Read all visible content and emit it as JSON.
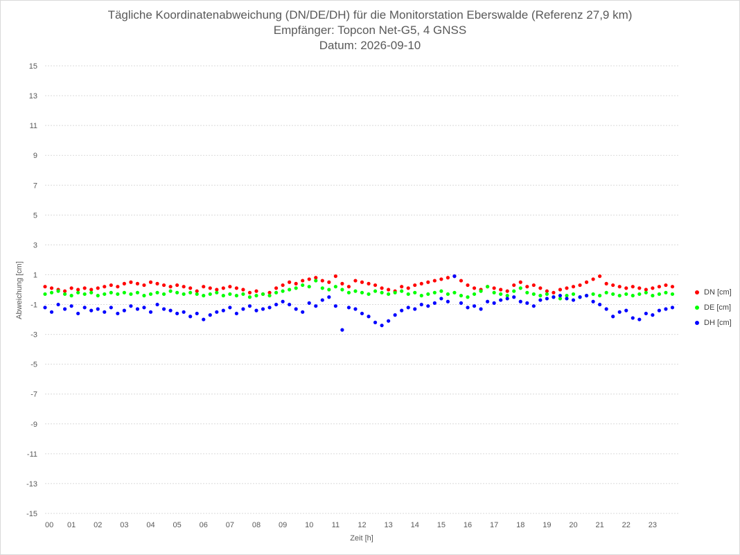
{
  "chart_data": {
    "type": "scatter",
    "title": "Tägliche Koordinatenabweichung (DN/DE/DH) für die Monitorstation Eberswalde (Referenz 27,9 km)",
    "subtitle": "Empfänger: Topcon Net-G5, 4 GNSS",
    "date_line": "Datum: 2026-09-10",
    "xlabel": "Zeit [h]",
    "ylabel": "Abweichung [cm]",
    "xlim": [
      0,
      24
    ],
    "ylim": [
      -15,
      15
    ],
    "y_ticks": [
      15,
      13,
      11,
      9,
      7,
      5,
      3,
      1,
      -1,
      -3,
      -5,
      -7,
      -9,
      -11,
      -13,
      -15
    ],
    "x_ticks": [
      "00",
      "01",
      "02",
      "03",
      "04",
      "05",
      "06",
      "07",
      "08",
      "09",
      "10",
      "11",
      "12",
      "13",
      "14",
      "15",
      "16",
      "17",
      "18",
      "19",
      "20",
      "21",
      "22",
      "23"
    ],
    "grid": "horizontal dashed",
    "legend_position": "right",
    "series": [
      {
        "name": "DN [cm]",
        "color": "#ff0000",
        "x": [
          0.0,
          0.25,
          0.5,
          0.75,
          1.0,
          1.25,
          1.5,
          1.75,
          2.0,
          2.25,
          2.5,
          2.75,
          3.0,
          3.25,
          3.5,
          3.75,
          4.0,
          4.25,
          4.5,
          4.75,
          5.0,
          5.25,
          5.5,
          5.75,
          6.0,
          6.25,
          6.5,
          6.75,
          7.0,
          7.25,
          7.5,
          7.75,
          8.0,
          8.25,
          8.5,
          8.75,
          9.0,
          9.25,
          9.5,
          9.75,
          10.0,
          10.25,
          10.5,
          10.75,
          11.0,
          11.25,
          11.5,
          11.75,
          12.0,
          12.25,
          12.5,
          12.75,
          13.0,
          13.25,
          13.5,
          13.75,
          14.0,
          14.25,
          14.5,
          14.75,
          15.0,
          15.25,
          15.5,
          15.75,
          16.0,
          16.25,
          16.5,
          16.75,
          17.0,
          17.25,
          17.5,
          17.75,
          18.0,
          18.25,
          18.5,
          18.75,
          19.0,
          19.25,
          19.5,
          19.75,
          20.0,
          20.25,
          20.5,
          20.75,
          21.0,
          21.25,
          21.5,
          21.75,
          22.0,
          22.25,
          22.5,
          22.75,
          23.0,
          23.25,
          23.5,
          23.75
        ],
        "y": [
          0.2,
          0.1,
          0.0,
          -0.1,
          0.1,
          0.0,
          0.1,
          0.0,
          0.1,
          0.2,
          0.3,
          0.2,
          0.4,
          0.5,
          0.4,
          0.3,
          0.5,
          0.4,
          0.3,
          0.2,
          0.3,
          0.2,
          0.1,
          -0.1,
          0.2,
          0.1,
          0.0,
          0.1,
          0.2,
          0.1,
          0.0,
          -0.2,
          -0.1,
          -0.3,
          -0.2,
          0.1,
          0.3,
          0.5,
          0.4,
          0.6,
          0.7,
          0.8,
          0.6,
          0.5,
          0.9,
          0.4,
          0.2,
          0.6,
          0.5,
          0.4,
          0.3,
          0.1,
          0.0,
          -0.1,
          0.2,
          0.1,
          0.3,
          0.4,
          0.5,
          0.6,
          0.7,
          0.8,
          0.9,
          0.6,
          0.3,
          0.1,
          0.0,
          0.2,
          0.1,
          0.0,
          -0.1,
          0.3,
          0.5,
          0.2,
          0.3,
          0.1,
          -0.1,
          -0.2,
          0.0,
          0.1,
          0.2,
          0.3,
          0.5,
          0.7,
          0.9,
          0.4,
          0.3,
          0.2,
          0.1,
          0.2,
          0.1,
          0.0,
          0.1,
          0.2,
          0.3,
          0.2
        ]
      },
      {
        "name": "DE [cm]",
        "color": "#00ff00",
        "x": [
          0.0,
          0.25,
          0.5,
          0.75,
          1.0,
          1.25,
          1.5,
          1.75,
          2.0,
          2.25,
          2.5,
          2.75,
          3.0,
          3.25,
          3.5,
          3.75,
          4.0,
          4.25,
          4.5,
          4.75,
          5.0,
          5.25,
          5.5,
          5.75,
          6.0,
          6.25,
          6.5,
          6.75,
          7.0,
          7.25,
          7.5,
          7.75,
          8.0,
          8.25,
          8.5,
          8.75,
          9.0,
          9.25,
          9.5,
          9.75,
          10.0,
          10.25,
          10.5,
          10.75,
          11.0,
          11.25,
          11.5,
          11.75,
          12.0,
          12.25,
          12.5,
          12.75,
          13.0,
          13.25,
          13.5,
          13.75,
          14.0,
          14.25,
          14.5,
          14.75,
          15.0,
          15.25,
          15.5,
          15.75,
          16.0,
          16.25,
          16.5,
          16.75,
          17.0,
          17.25,
          17.5,
          17.75,
          18.0,
          18.25,
          18.5,
          18.75,
          19.0,
          19.25,
          19.5,
          19.75,
          20.0,
          20.25,
          20.5,
          20.75,
          21.0,
          21.25,
          21.5,
          21.75,
          22.0,
          22.25,
          22.5,
          22.75,
          23.0,
          23.25,
          23.5,
          23.75
        ],
        "y": [
          -0.3,
          -0.2,
          -0.1,
          -0.3,
          -0.4,
          -0.2,
          -0.3,
          -0.2,
          -0.4,
          -0.3,
          -0.2,
          -0.3,
          -0.2,
          -0.3,
          -0.2,
          -0.4,
          -0.3,
          -0.2,
          -0.3,
          -0.1,
          -0.2,
          -0.3,
          -0.2,
          -0.3,
          -0.4,
          -0.3,
          -0.2,
          -0.4,
          -0.3,
          -0.4,
          -0.3,
          -0.5,
          -0.4,
          -0.3,
          -0.4,
          -0.2,
          -0.1,
          0.0,
          0.1,
          0.3,
          0.2,
          0.6,
          0.1,
          0.0,
          0.2,
          0.0,
          -0.2,
          -0.1,
          -0.2,
          -0.3,
          -0.1,
          -0.2,
          -0.3,
          -0.2,
          -0.1,
          -0.3,
          -0.2,
          -0.4,
          -0.3,
          -0.2,
          -0.1,
          -0.3,
          -0.2,
          -0.4,
          -0.5,
          -0.3,
          -0.1,
          0.2,
          -0.2,
          -0.3,
          -0.4,
          -0.1,
          0.1,
          -0.2,
          -0.3,
          -0.4,
          -0.3,
          -0.5,
          -0.6,
          -0.4,
          -0.3,
          -0.5,
          -0.4,
          -0.3,
          -0.4,
          -0.2,
          -0.3,
          -0.4,
          -0.3,
          -0.4,
          -0.3,
          -0.2,
          -0.4,
          -0.3,
          -0.2,
          -0.3
        ]
      },
      {
        "name": "DH [cm]",
        "color": "#0000ff",
        "x": [
          0.0,
          0.25,
          0.5,
          0.75,
          1.0,
          1.25,
          1.5,
          1.75,
          2.0,
          2.25,
          2.5,
          2.75,
          3.0,
          3.25,
          3.5,
          3.75,
          4.0,
          4.25,
          4.5,
          4.75,
          5.0,
          5.25,
          5.5,
          5.75,
          6.0,
          6.25,
          6.5,
          6.75,
          7.0,
          7.25,
          7.5,
          7.75,
          8.0,
          8.25,
          8.5,
          8.75,
          9.0,
          9.25,
          9.5,
          9.75,
          10.0,
          10.25,
          10.5,
          10.75,
          11.0,
          11.25,
          11.5,
          11.75,
          12.0,
          12.25,
          12.5,
          12.75,
          13.0,
          13.25,
          13.5,
          13.75,
          14.0,
          14.25,
          14.5,
          14.75,
          15.0,
          15.25,
          15.5,
          15.75,
          16.0,
          16.25,
          16.5,
          16.75,
          17.0,
          17.25,
          17.5,
          17.75,
          18.0,
          18.25,
          18.5,
          18.75,
          19.0,
          19.25,
          19.5,
          19.75,
          20.0,
          20.25,
          20.5,
          20.75,
          21.0,
          21.25,
          21.5,
          21.75,
          22.0,
          22.25,
          22.5,
          22.75,
          23.0,
          23.25,
          23.5,
          23.75
        ],
        "y": [
          -1.2,
          -1.5,
          -1.0,
          -1.3,
          -1.1,
          -1.6,
          -1.2,
          -1.4,
          -1.3,
          -1.5,
          -1.2,
          -1.6,
          -1.4,
          -1.1,
          -1.3,
          -1.2,
          -1.5,
          -1.0,
          -1.3,
          -1.4,
          -1.6,
          -1.5,
          -1.8,
          -1.6,
          -2.0,
          -1.7,
          -1.5,
          -1.4,
          -1.2,
          -1.6,
          -1.3,
          -1.1,
          -1.4,
          -1.3,
          -1.2,
          -1.0,
          -0.8,
          -1.0,
          -1.3,
          -1.5,
          -0.9,
          -1.1,
          -0.7,
          -0.5,
          -1.1,
          -2.7,
          -1.2,
          -1.3,
          -1.6,
          -1.8,
          -2.2,
          -2.4,
          -2.1,
          -1.7,
          -1.4,
          -1.2,
          -1.3,
          -1.0,
          -1.1,
          -0.9,
          -0.6,
          -0.8,
          0.9,
          -0.9,
          -1.2,
          -1.1,
          -1.3,
          -0.8,
          -0.9,
          -0.7,
          -0.6,
          -0.5,
          -0.8,
          -0.9,
          -1.1,
          -0.7,
          -0.6,
          -0.5,
          -0.4,
          -0.6,
          -0.7,
          -0.5,
          -0.4,
          -0.8,
          -1.0,
          -1.3,
          -1.8,
          -1.5,
          -1.4,
          -1.9,
          -2.0,
          -1.6,
          -1.7,
          -1.4,
          -1.3,
          -1.2
        ]
      }
    ]
  }
}
